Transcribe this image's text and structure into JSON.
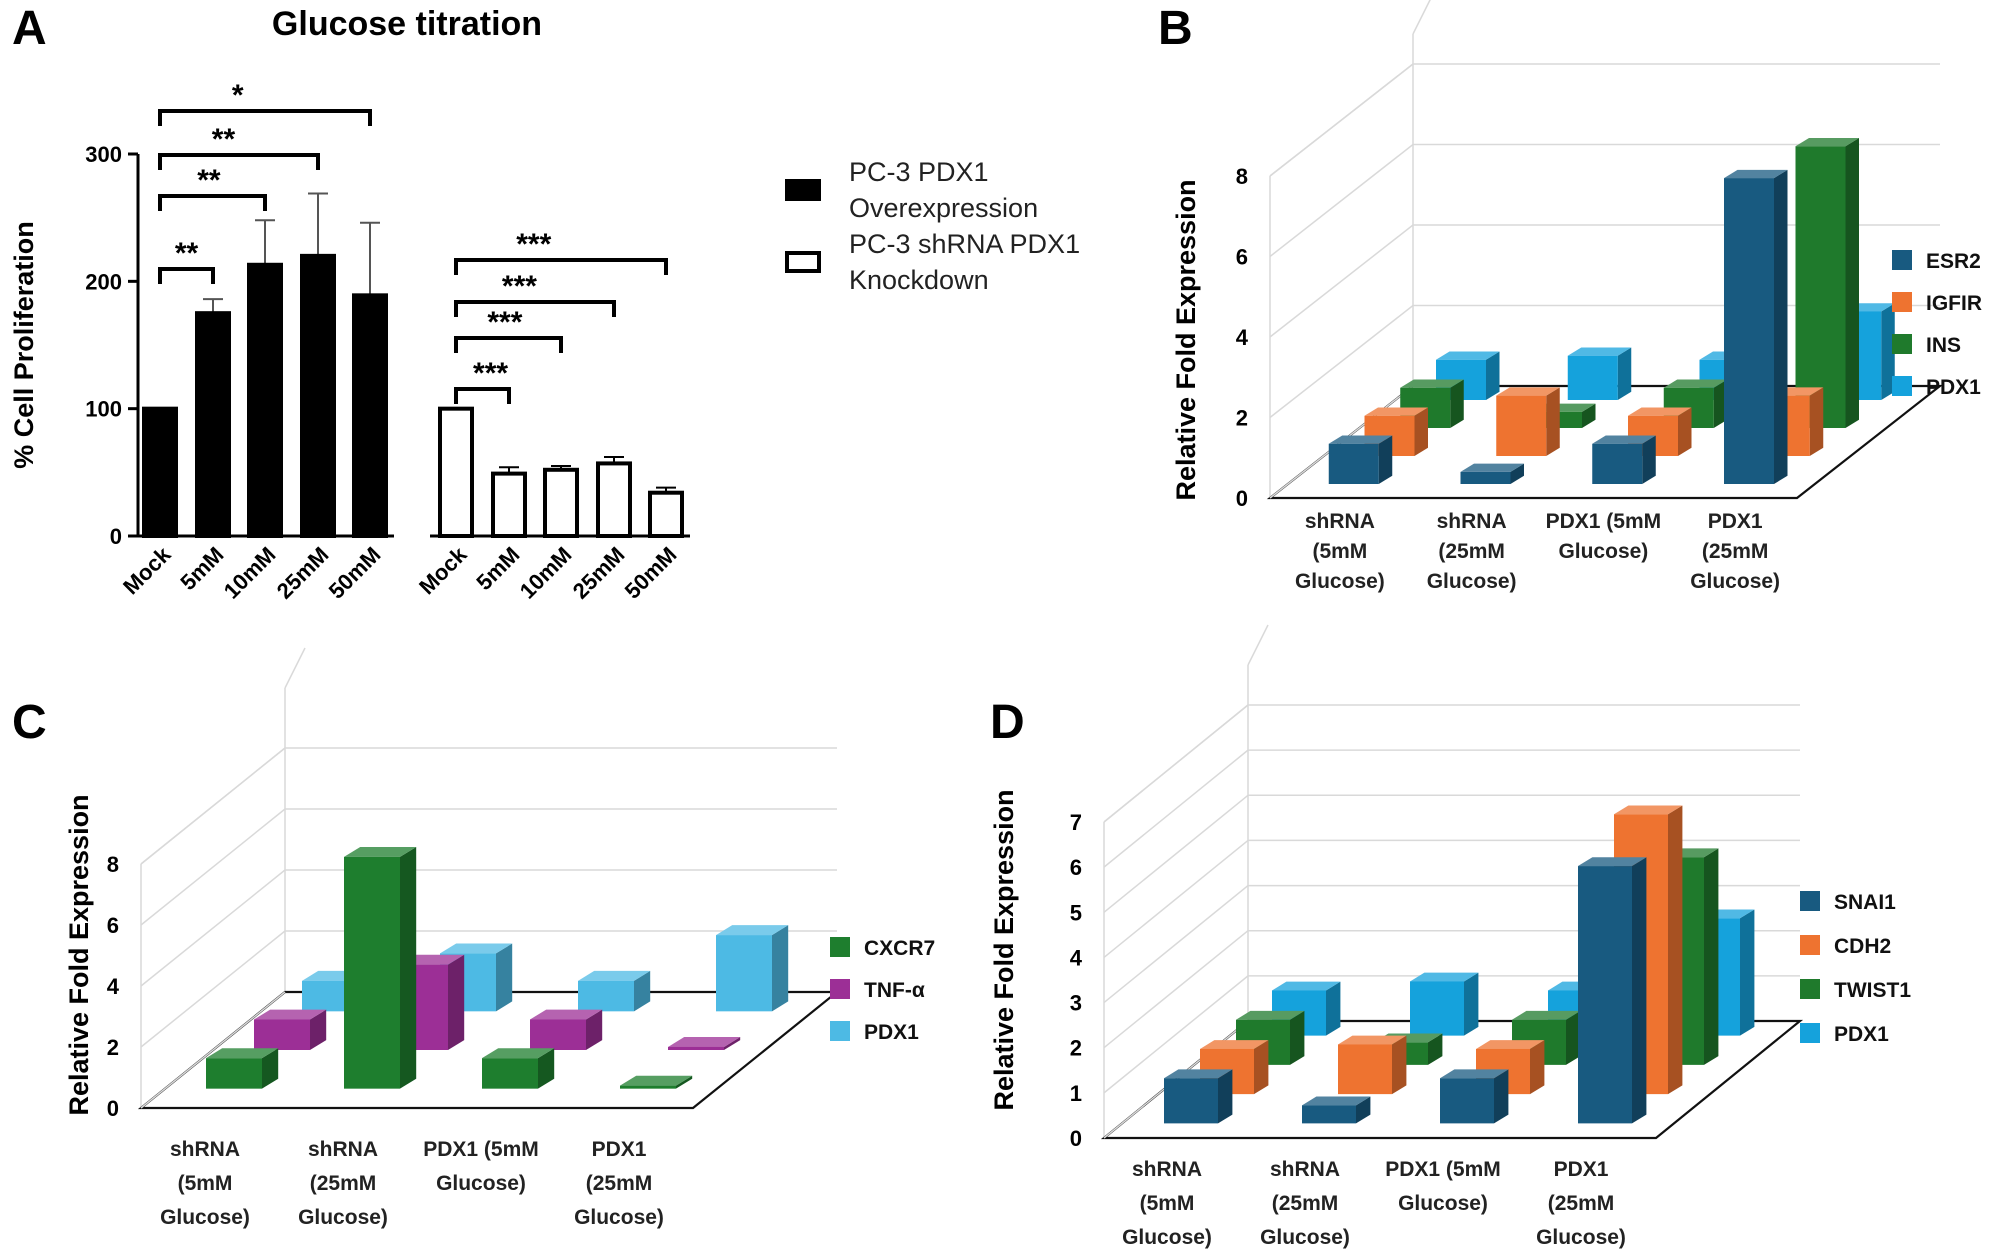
{
  "panels": {
    "A": "A",
    "B": "B",
    "C": "C",
    "D": "D"
  },
  "chart_data": [
    {
      "panel": "A",
      "type": "bar",
      "title": "Glucose titration",
      "ylabel": "% Cell Proliferation",
      "ylim": [
        0,
        300
      ],
      "yticks": [
        0,
        100,
        200,
        300
      ],
      "categories": [
        "Mock",
        "5mM",
        "10mM",
        "25mM",
        "50mM"
      ],
      "series": [
        {
          "name": "PC-3 PDX1 Overexpression",
          "legend_lines": [
            "PC-3 PDX1",
            "Overexpression"
          ],
          "color": "#000000",
          "fill": "solid",
          "values": [
            100,
            175,
            213,
            220,
            189
          ],
          "errors": [
            0,
            11,
            35,
            49,
            57
          ]
        },
        {
          "name": "PC-3 shRNA PDX1 Knockdown",
          "legend_lines": [
            "PC-3 shRNA PDX1",
            "Knockdown"
          ],
          "color": "#000000",
          "fill": "hollow",
          "values": [
            100,
            49,
            52,
            57,
            34
          ],
          "errors": [
            0,
            5,
            3,
            5,
            4
          ]
        }
      ],
      "significance": [
        {
          "series": 0,
          "from": 0,
          "to": 1,
          "label": "**"
        },
        {
          "series": 0,
          "from": 0,
          "to": 2,
          "label": "**"
        },
        {
          "series": 0,
          "from": 0,
          "to": 3,
          "label": "**"
        },
        {
          "series": 0,
          "from": 0,
          "to": 4,
          "label": "*"
        },
        {
          "series": 1,
          "from": 0,
          "to": 1,
          "label": "***"
        },
        {
          "series": 1,
          "from": 0,
          "to": 2,
          "label": "***"
        },
        {
          "series": 1,
          "from": 0,
          "to": 3,
          "label": "***"
        },
        {
          "series": 1,
          "from": 0,
          "to": 4,
          "label": "***"
        }
      ]
    },
    {
      "panel": "B",
      "type": "bar",
      "ylabel": "Relative Fold Expression",
      "ylim": [
        0,
        8
      ],
      "yticks": [
        0,
        2,
        4,
        6,
        8
      ],
      "categories": [
        [
          "shRNA",
          "(5mM",
          "Glucose)"
        ],
        [
          "shRNA",
          "(25mM",
          "Glucose)"
        ],
        [
          "PDX1 (5mM",
          "Glucose)"
        ],
        [
          "PDX1",
          "(25mM",
          "Glucose)"
        ]
      ],
      "series": [
        {
          "name": "ESR2",
          "color": "#185A80",
          "values": [
            1.0,
            0.3,
            1.0,
            7.6
          ]
        },
        {
          "name": "IGFIR",
          "color": "#EE7330",
          "values": [
            1.0,
            1.5,
            1.0,
            1.5
          ]
        },
        {
          "name": "INS",
          "color": "#1F7A2C",
          "values": [
            1.0,
            0.4,
            1.0,
            7.0
          ]
        },
        {
          "name": "PDX1",
          "color": "#15A2DC",
          "values": [
            1.0,
            1.1,
            1.0,
            2.2
          ]
        }
      ]
    },
    {
      "panel": "C",
      "type": "bar",
      "ylabel": "Relative Fold Expression",
      "ylim": [
        0,
        8
      ],
      "yticks": [
        0,
        2,
        4,
        6,
        8
      ],
      "categories": [
        [
          "shRNA",
          "(5mM",
          "Glucose)"
        ],
        [
          "shRNA",
          "(25mM",
          "Glucose)"
        ],
        [
          "PDX1 (5mM",
          "Glucose)"
        ],
        [
          "PDX1",
          "(25mM",
          "Glucose)"
        ]
      ],
      "series": [
        {
          "name": "CXCR7",
          "color": "#1E7E2E",
          "values": [
            1.0,
            7.6,
            1.0,
            0.1
          ]
        },
        {
          "name": "TNF-α",
          "color": "#9C2F96",
          "values": [
            1.0,
            2.8,
            1.0,
            0.1
          ]
        },
        {
          "name": "PDX1",
          "color": "#4DBAE4",
          "values": [
            1.0,
            1.9,
            1.0,
            2.5
          ]
        }
      ]
    },
    {
      "panel": "D",
      "type": "bar",
      "ylabel": "Relative Fold Expression",
      "ylim": [
        0,
        7
      ],
      "yticks": [
        0,
        1,
        2,
        3,
        4,
        5,
        6,
        7
      ],
      "categories": [
        [
          "shRNA",
          "(5mM",
          "Glucose)"
        ],
        [
          "shRNA",
          "(25mM",
          "Glucose)"
        ],
        [
          "PDX1 (5mM",
          "Glucose)"
        ],
        [
          "PDX1",
          "(25mM",
          "Glucose)"
        ]
      ],
      "series": [
        {
          "name": "SNAI1",
          "color": "#185A80",
          "values": [
            1.0,
            0.4,
            1.0,
            5.7
          ]
        },
        {
          "name": "CDH2",
          "color": "#EE7330",
          "values": [
            1.0,
            1.1,
            1.0,
            6.2
          ]
        },
        {
          "name": "TWIST1",
          "color": "#1F7A2C",
          "values": [
            1.0,
            0.5,
            1.0,
            4.6
          ]
        },
        {
          "name": "PDX1",
          "color": "#15A2DC",
          "values": [
            1.0,
            1.2,
            1.0,
            2.6
          ]
        }
      ]
    }
  ]
}
